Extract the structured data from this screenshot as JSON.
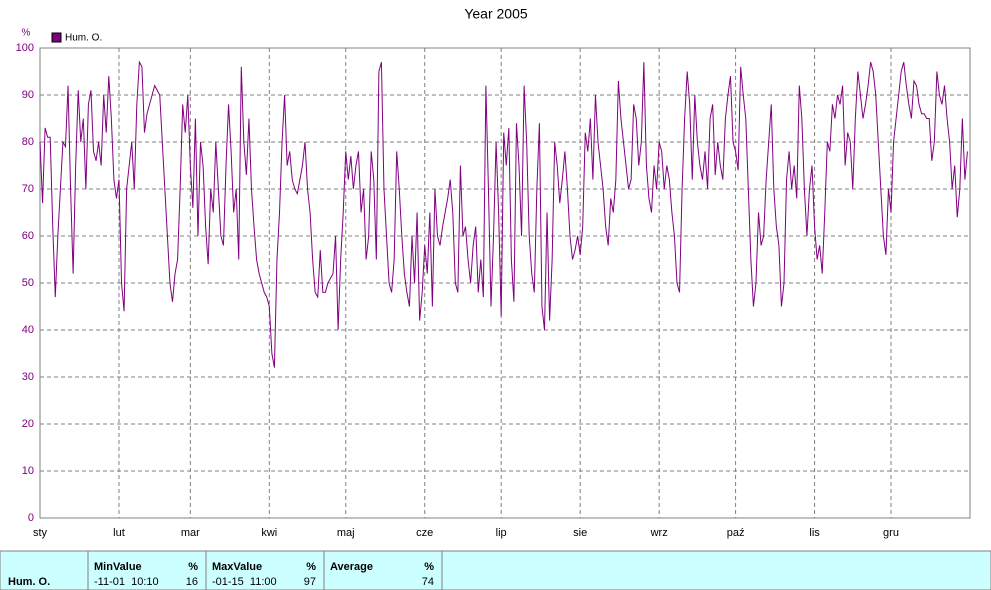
{
  "chart_data": {
    "type": "line",
    "title": "Year 2005",
    "y_label": "%",
    "series": [
      {
        "name": "Hum. O.",
        "color": "#800080",
        "values": [
          80,
          67,
          83,
          81,
          81,
          62,
          47,
          60,
          70,
          80,
          79,
          92,
          70,
          52,
          75,
          91,
          80,
          85,
          70,
          88,
          91,
          78,
          76,
          80,
          75,
          90,
          82,
          94,
          85,
          72,
          68,
          72,
          50,
          44,
          70,
          75,
          80,
          70,
          88,
          97,
          96,
          82,
          86,
          88,
          90,
          92,
          91,
          90,
          80,
          70,
          60,
          50,
          46,
          52,
          55,
          70,
          88,
          82,
          90,
          75,
          66,
          85,
          60,
          80,
          75,
          62,
          54,
          70,
          65,
          80,
          70,
          60,
          58,
          75,
          88,
          78,
          65,
          70,
          55,
          96,
          80,
          73,
          85,
          70,
          62,
          55,
          52,
          50,
          48,
          47,
          45,
          35,
          32,
          55,
          65,
          80,
          90,
          75,
          78,
          72,
          70,
          69,
          72,
          75,
          80,
          70,
          65,
          55,
          48,
          47,
          57,
          48,
          48,
          50,
          51,
          52,
          60,
          40,
          55,
          65,
          78,
          72,
          77,
          70,
          75,
          78,
          65,
          70,
          55,
          60,
          78,
          72,
          55,
          95,
          97,
          70,
          60,
          50,
          48,
          55,
          78,
          70,
          60,
          52,
          48,
          45,
          60,
          50,
          65,
          42,
          48,
          58,
          52,
          65,
          45,
          70,
          60,
          58,
          62,
          65,
          68,
          72,
          65,
          50,
          48,
          75,
          60,
          62,
          55,
          50,
          58,
          62,
          48,
          55,
          47,
          92,
          70,
          45,
          60,
          80,
          65,
          43,
          82,
          75,
          83,
          55,
          46,
          84,
          75,
          60,
          92,
          80,
          60,
          52,
          48,
          70,
          84,
          45,
          40,
          65,
          42,
          55,
          80,
          75,
          67,
          72,
          78,
          70,
          60,
          55,
          57,
          60,
          56,
          62,
          82,
          78,
          85,
          72,
          90,
          80,
          75,
          70,
          62,
          58,
          68,
          65,
          72,
          93,
          85,
          80,
          75,
          70,
          72,
          88,
          85,
          75,
          80,
          97,
          75,
          68,
          65,
          75,
          70,
          80,
          78,
          70,
          75,
          72,
          65,
          60,
          50,
          48,
          70,
          85,
          95,
          88,
          72,
          90,
          80,
          75,
          72,
          78,
          70,
          85,
          88,
          73,
          80,
          75,
          72,
          85,
          90,
          94,
          80,
          78,
          74,
          96,
          90,
          85,
          70,
          55,
          45,
          50,
          65,
          58,
          60,
          72,
          80,
          88,
          70,
          62,
          58,
          45,
          50,
          72,
          78,
          70,
          75,
          68,
          92,
          85,
          70,
          60,
          70,
          75,
          62,
          55,
          58,
          52,
          65,
          80,
          78,
          88,
          85,
          90,
          88,
          92,
          75,
          82,
          80,
          70,
          85,
          95,
          90,
          85,
          88,
          92,
          97,
          95,
          90,
          80,
          70,
          60,
          56,
          70,
          65,
          80,
          85,
          90,
          95,
          97,
          92,
          88,
          85,
          93,
          92,
          88,
          86,
          86,
          85,
          85,
          76,
          80,
          95,
          90,
          88,
          92,
          85,
          80,
          70,
          75,
          64,
          70,
          85,
          72,
          78
        ]
      }
    ],
    "xlim": [
      0,
      365
    ],
    "xticks": [
      {
        "value": 0,
        "label": "sty"
      },
      {
        "value": 31,
        "label": "lut"
      },
      {
        "value": 59,
        "label": "mar"
      },
      {
        "value": 90,
        "label": "kwi"
      },
      {
        "value": 120,
        "label": "maj"
      },
      {
        "value": 151,
        "label": "cze"
      },
      {
        "value": 181,
        "label": "lip"
      },
      {
        "value": 212,
        "label": "sie"
      },
      {
        "value": 243,
        "label": "wrz"
      },
      {
        "value": 273,
        "label": "paź"
      },
      {
        "value": 304,
        "label": "lis"
      },
      {
        "value": 334,
        "label": "gru"
      }
    ],
    "ylim": [
      0,
      100
    ],
    "yticks": [
      0,
      10,
      20,
      30,
      40,
      50,
      60,
      70,
      80,
      90,
      100
    ],
    "grid": true
  },
  "stats": {
    "row_label": "Hum. O.",
    "columns": [
      {
        "header": "MinValue",
        "unit": "%",
        "time": "-11-01  10:10",
        "value": "16"
      },
      {
        "header": "MaxValue",
        "unit": "%",
        "time": "-01-15  11:00",
        "value": "97"
      },
      {
        "header": "Average",
        "unit": "%",
        "time": "",
        "value": "74"
      }
    ]
  }
}
